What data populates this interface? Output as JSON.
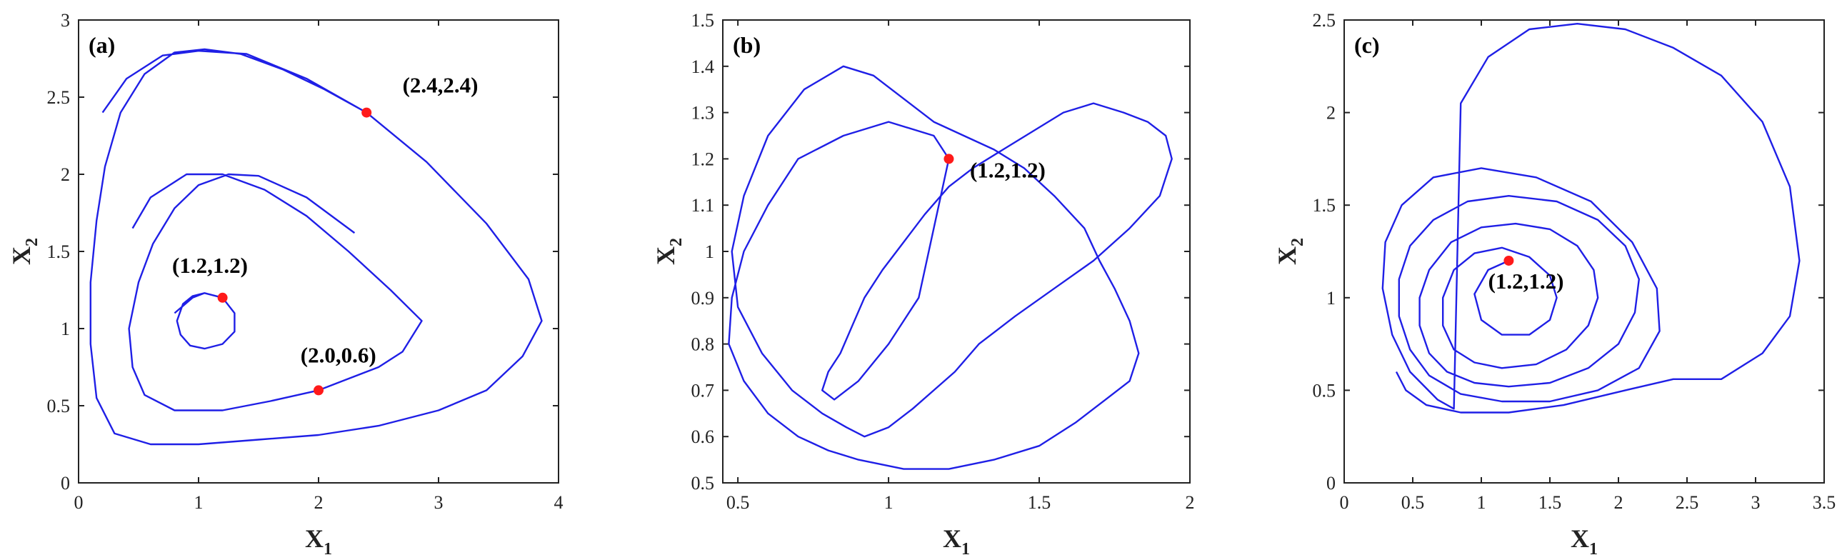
{
  "colors": {
    "trajectory": "#1f1fe6",
    "marker": "#ff1a1a",
    "axis": "#222222"
  },
  "chart_data": [
    {
      "type": "line",
      "panel_label": "(a)",
      "xlabel": "X",
      "xlabel_sub": "1",
      "ylabel": "X",
      "ylabel_sub": "2",
      "xlim": [
        0,
        4
      ],
      "ylim": [
        0,
        3
      ],
      "xticks": [
        0,
        1,
        2,
        3,
        4
      ],
      "yticks": [
        0,
        0.5,
        1,
        1.5,
        2,
        2.5,
        3
      ],
      "xtick_labels": [
        "0",
        "1",
        "2",
        "3",
        "4"
      ],
      "ytick_labels": [
        "0",
        "0.5",
        "1",
        "1.5",
        "2",
        "2.5",
        "3"
      ],
      "grid": false,
      "series": [
        {
          "x": [
            0.8,
            0.95,
            1.05,
            1.2,
            1.3,
            1.3,
            1.2,
            1.05,
            0.93,
            0.85,
            0.82,
            0.87,
            0.95,
            1.05,
            1.2
          ],
          "y": [
            1.1,
            1.2,
            1.23,
            1.2,
            1.1,
            0.98,
            0.9,
            0.87,
            0.89,
            0.96,
            1.05,
            1.16,
            1.21,
            1.23,
            1.2
          ]
        },
        {
          "x": [
            0.45,
            0.6,
            0.9,
            1.2,
            1.55,
            1.9,
            2.25,
            2.6,
            2.86,
            2.7,
            2.5,
            2.2,
            2.0,
            1.6,
            1.2,
            0.8,
            0.55,
            0.45,
            0.42,
            0.5,
            0.62,
            0.8,
            1.0,
            1.25,
            1.5,
            1.9,
            2.3
          ],
          "y": [
            1.65,
            1.85,
            2.0,
            2.0,
            1.9,
            1.73,
            1.5,
            1.25,
            1.05,
            0.85,
            0.75,
            0.66,
            0.6,
            0.53,
            0.47,
            0.47,
            0.57,
            0.75,
            1.0,
            1.3,
            1.55,
            1.78,
            1.93,
            2.0,
            1.99,
            1.85,
            1.62
          ]
        },
        {
          "x": [
            0.2,
            0.4,
            0.7,
            1.0,
            1.4,
            1.9,
            2.4,
            2.9,
            3.4,
            3.75,
            3.86,
            3.7,
            3.4,
            3.0,
            2.5,
            2.0,
            1.5,
            1.0,
            0.6,
            0.3,
            0.15,
            0.1,
            0.1,
            0.15,
            0.22,
            0.35,
            0.55,
            0.8,
            1.05,
            1.35,
            1.7,
            2.05,
            2.4
          ],
          "y": [
            2.4,
            2.62,
            2.77,
            2.8,
            2.78,
            2.62,
            2.4,
            2.08,
            1.68,
            1.32,
            1.05,
            0.82,
            0.6,
            0.47,
            0.37,
            0.31,
            0.28,
            0.25,
            0.25,
            0.32,
            0.55,
            0.9,
            1.3,
            1.7,
            2.05,
            2.4,
            2.65,
            2.79,
            2.81,
            2.78,
            2.68,
            2.55,
            2.4
          ]
        }
      ],
      "markers": [
        {
          "x": 1.2,
          "y": 1.2,
          "label": "(1.2,1.2)",
          "label_x": 0.78,
          "label_y": 1.36
        },
        {
          "x": 2.0,
          "y": 0.6,
          "label": "(2.0,0.6)",
          "label_x": 1.85,
          "label_y": 0.78
        },
        {
          "x": 2.4,
          "y": 2.4,
          "label": "(2.4,2.4)",
          "label_x": 2.7,
          "label_y": 2.53
        }
      ]
    },
    {
      "type": "line",
      "panel_label": "(b)",
      "xlabel": "X",
      "xlabel_sub": "1",
      "ylabel": "X",
      "ylabel_sub": "2",
      "xlim": [
        0.45,
        2
      ],
      "ylim": [
        0.5,
        1.5
      ],
      "xticks": [
        0.5,
        1,
        1.5,
        2
      ],
      "yticks": [
        0.5,
        0.6,
        0.7,
        0.8,
        0.9,
        1,
        1.1,
        1.2,
        1.3,
        1.4,
        1.5
      ],
      "xtick_labels": [
        "0.5",
        "1",
        "1.5",
        "2"
      ],
      "ytick_labels": [
        "0.5",
        "0.6",
        "0.7",
        "0.8",
        "0.9",
        "1",
        "1.1",
        "1.2",
        "1.3",
        "1.4",
        "1.5"
      ],
      "grid": false,
      "series": [
        {
          "x": [
            1.2,
            1.15,
            1.0,
            0.85,
            0.7,
            0.6,
            0.52,
            0.48,
            0.47,
            0.52,
            0.6,
            0.7,
            0.8,
            0.9,
            1.05,
            1.2,
            1.35,
            1.5,
            1.62,
            1.72,
            1.8,
            1.83,
            1.8,
            1.75,
            1.7,
            1.65,
            1.55,
            1.45,
            1.35,
            1.25,
            1.15,
            1.05,
            0.95,
            0.85,
            0.72,
            0.6,
            0.52,
            0.48,
            0.5,
            0.58,
            0.68,
            0.78,
            0.86,
            0.92,
            1.0,
            1.08,
            1.15,
            1.22,
            1.3,
            1.42,
            1.55,
            1.68,
            1.8,
            1.9,
            1.94,
            1.92,
            1.86,
            1.78,
            1.68,
            1.58,
            1.48,
            1.38,
            1.28,
            1.2,
            1.12,
            1.05,
            0.98,
            0.92,
            0.88,
            0.84,
            0.8,
            0.78,
            0.82,
            0.9,
            1.0,
            1.1,
            1.2
          ],
          "y": [
            1.2,
            1.25,
            1.28,
            1.25,
            1.2,
            1.1,
            1.0,
            0.9,
            0.8,
            0.72,
            0.65,
            0.6,
            0.57,
            0.55,
            0.53,
            0.53,
            0.55,
            0.58,
            0.63,
            0.68,
            0.72,
            0.78,
            0.85,
            0.92,
            0.98,
            1.05,
            1.12,
            1.18,
            1.22,
            1.25,
            1.28,
            1.33,
            1.38,
            1.4,
            1.35,
            1.25,
            1.12,
            1.0,
            0.88,
            0.78,
            0.7,
            0.65,
            0.62,
            0.6,
            0.62,
            0.66,
            0.7,
            0.74,
            0.8,
            0.86,
            0.92,
            0.98,
            1.05,
            1.12,
            1.2,
            1.25,
            1.28,
            1.3,
            1.32,
            1.3,
            1.26,
            1.22,
            1.18,
            1.14,
            1.08,
            1.02,
            0.96,
            0.9,
            0.84,
            0.78,
            0.74,
            0.7,
            0.68,
            0.72,
            0.8,
            0.9,
            1.2
          ]
        }
      ],
      "markers": [
        {
          "x": 1.2,
          "y": 1.2,
          "label": "(1.2,1.2)",
          "label_x": 1.27,
          "label_y": 1.16
        }
      ]
    },
    {
      "type": "line",
      "panel_label": "(c)",
      "xlabel": "X",
      "xlabel_sub": "1",
      "ylabel": "X",
      "ylabel_sub": "2",
      "xlim": [
        0,
        3.5
      ],
      "ylim": [
        0,
        2.5
      ],
      "xticks": [
        0,
        0.5,
        1,
        1.5,
        2,
        2.5,
        3,
        3.5
      ],
      "yticks": [
        0,
        0.5,
        1,
        1.5,
        2,
        2.5
      ],
      "xtick_labels": [
        "0",
        "0.5",
        "1",
        "1.5",
        "2",
        "2.5",
        "3",
        "3.5"
      ],
      "ytick_labels": [
        "0",
        "0.5",
        "1",
        "1.5",
        "2",
        "2.5"
      ],
      "grid": false,
      "series": [
        {
          "x": [
            1.2,
            1.05,
            0.95,
            1.0,
            1.15,
            1.35,
            1.5,
            1.55,
            1.5,
            1.35,
            1.15,
            0.95,
            0.8,
            0.72,
            0.72,
            0.8,
            0.95,
            1.15,
            1.4,
            1.62,
            1.78,
            1.85,
            1.82,
            1.7,
            1.5,
            1.25,
            1.0,
            0.78,
            0.62,
            0.55,
            0.55,
            0.62,
            0.75,
            0.95,
            1.2,
            1.5,
            1.78,
            2.0,
            2.12,
            2.15,
            2.05,
            1.85,
            1.55,
            1.2,
            0.9,
            0.65,
            0.48,
            0.4,
            0.4,
            0.48,
            0.62,
            0.85,
            1.15,
            1.5,
            1.85,
            2.15,
            2.3,
            2.28,
            2.1,
            1.8,
            1.4,
            1.0,
            0.65,
            0.42,
            0.3,
            0.28,
            0.35,
            0.48,
            0.68,
            0.8,
            0.85,
            1.05,
            1.35,
            1.7,
            2.05,
            2.4,
            2.75,
            3.05,
            3.25,
            3.32,
            3.25,
            3.05,
            2.75,
            2.4,
            2.05,
            1.6,
            1.2,
            0.85,
            0.6,
            0.45,
            0.38
          ],
          "y": [
            1.2,
            1.15,
            1.02,
            0.88,
            0.8,
            0.8,
            0.88,
            1.0,
            1.12,
            1.22,
            1.27,
            1.24,
            1.15,
            1.0,
            0.85,
            0.72,
            0.65,
            0.62,
            0.64,
            0.72,
            0.85,
            1.0,
            1.15,
            1.28,
            1.37,
            1.4,
            1.38,
            1.3,
            1.15,
            1.0,
            0.85,
            0.7,
            0.6,
            0.54,
            0.52,
            0.54,
            0.62,
            0.75,
            0.92,
            1.1,
            1.28,
            1.42,
            1.52,
            1.55,
            1.52,
            1.42,
            1.28,
            1.1,
            0.9,
            0.72,
            0.58,
            0.48,
            0.44,
            0.44,
            0.5,
            0.62,
            0.82,
            1.05,
            1.3,
            1.52,
            1.65,
            1.7,
            1.65,
            1.5,
            1.3,
            1.05,
            0.8,
            0.6,
            0.45,
            0.4,
            2.05,
            2.3,
            2.45,
            2.48,
            2.45,
            2.35,
            2.2,
            1.95,
            1.6,
            1.2,
            0.9,
            0.7,
            0.56,
            0.56,
            0.5,
            0.42,
            0.38,
            0.38,
            0.42,
            0.5,
            0.6
          ]
        }
      ],
      "markers": [
        {
          "x": 1.2,
          "y": 1.2,
          "label": "(1.2,1.2)",
          "label_x": 1.05,
          "label_y": 1.05
        }
      ]
    }
  ]
}
